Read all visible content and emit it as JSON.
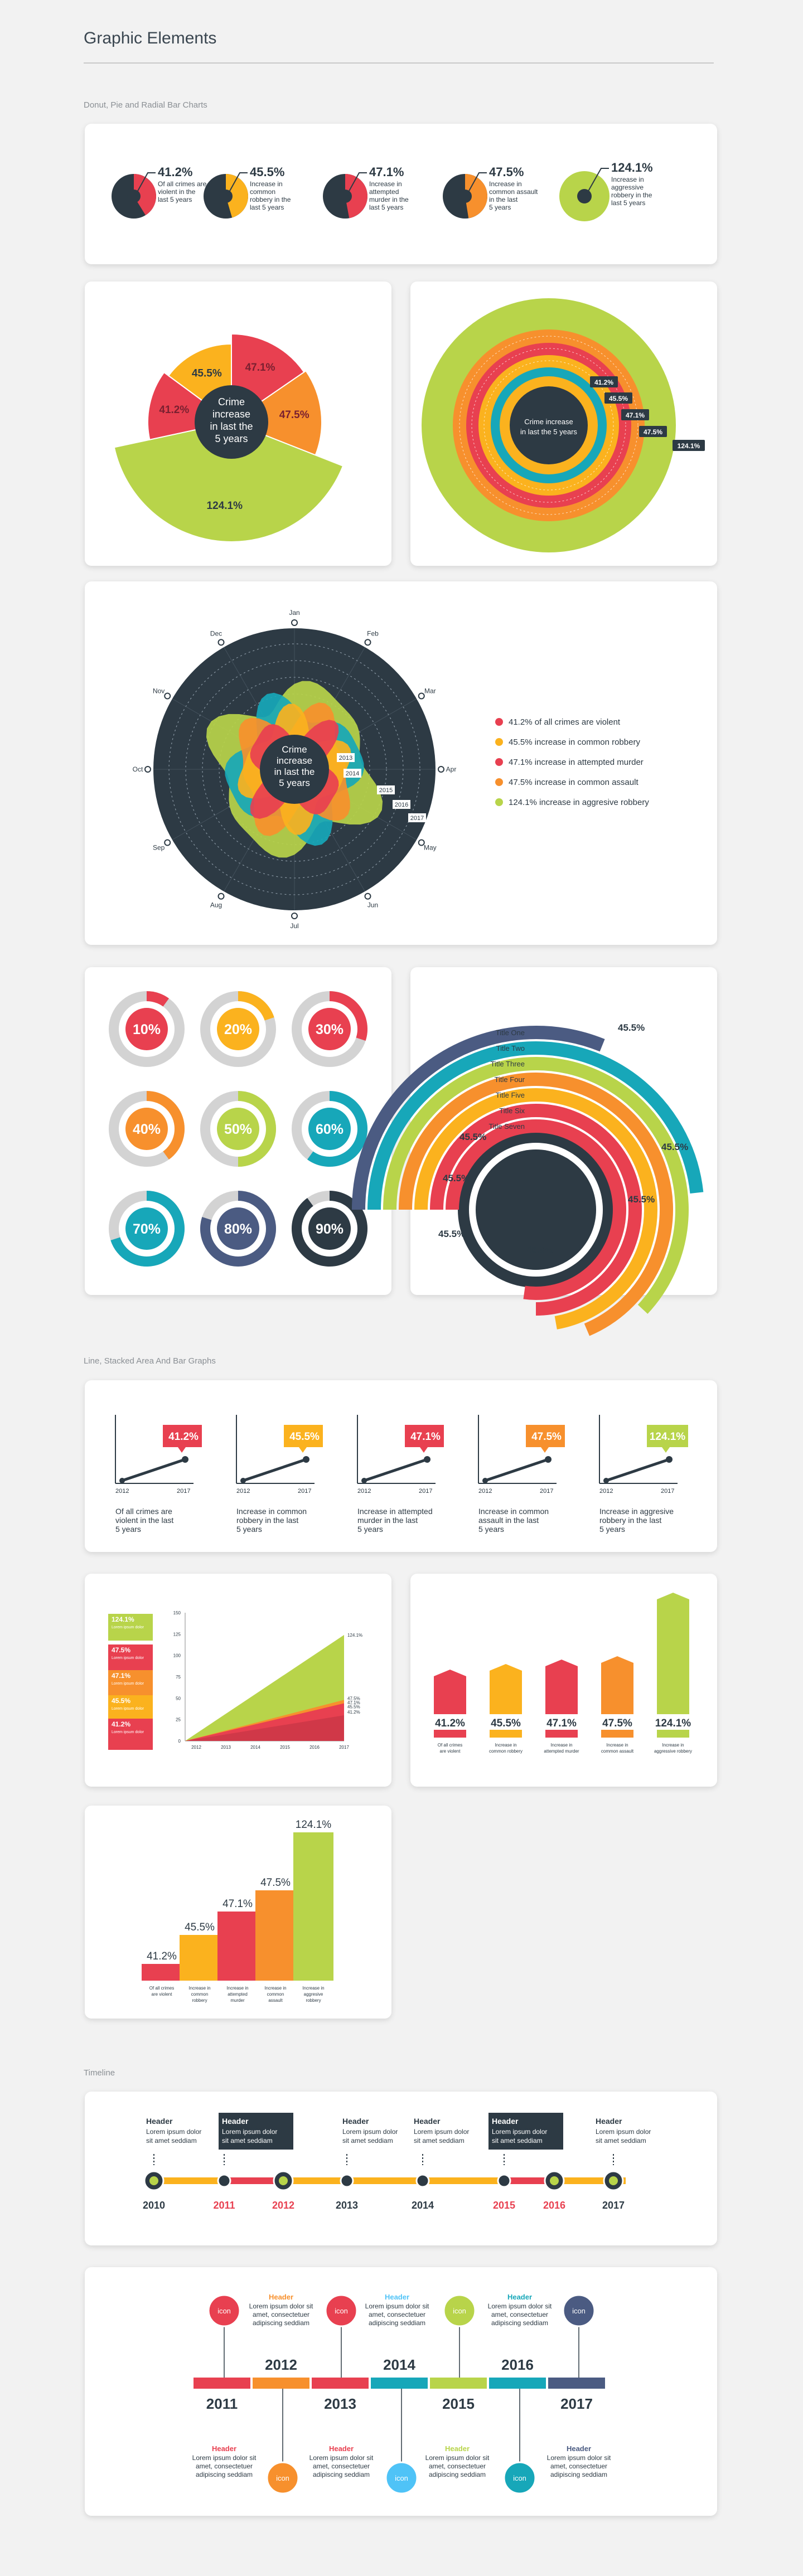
{
  "colors": {
    "red": "#e84050",
    "orange": "#f7902d",
    "yellow": "#fbb21e",
    "green": "#b8d44a",
    "teal": "#17a7b9",
    "blue": "#4b5b82",
    "dark": "#2d3a44",
    "grey": "#d3d3d3"
  },
  "page": {
    "title": "Graphic Elements"
  },
  "sections": {
    "s1": "Donut, Pie and Radial Bar Charts",
    "s2": "Line, Stacked Area And Bar Graphs",
    "s3": "Timeline"
  },
  "center_label": {
    "l1": "Crime",
    "l2": "increase",
    "l3": "in last the",
    "l4": "5 years",
    "single": "Crime increase in last the 5 years"
  },
  "chart_data": [
    {
      "type": "pie",
      "id": "mini-donuts",
      "values": [
        41.2,
        45.5,
        47.1,
        47.5,
        124.1
      ],
      "labels": [
        "41.2%",
        "45.5%",
        "47.1%",
        "47.5%",
        "124.1%"
      ],
      "captions": [
        [
          "Of all crimes are",
          "violent  in the",
          "last 5 years"
        ],
        [
          "Increase in",
          "common",
          "robbery in the",
          "last 5 years"
        ],
        [
          "Increase in",
          "attempted",
          "murder in the",
          "last 5 years"
        ],
        [
          "Increase in",
          "common assault",
          "in the last",
          "5 years"
        ],
        [
          "Increase in",
          "aggressive",
          "robbery in the",
          "last 5 years"
        ]
      ]
    },
    {
      "type": "pie",
      "id": "exploded-pie",
      "values": [
        47.1,
        47.5,
        124.1,
        41.2,
        45.5
      ],
      "labels": [
        "47.1%",
        "47.5%",
        "124.1%",
        "41.2%",
        "45.5%"
      ]
    },
    {
      "type": "pie",
      "id": "concentric",
      "values": [
        41.2,
        45.5,
        47.1,
        47.5,
        124.1
      ],
      "labels": [
        "41.2%",
        "45.5%",
        "47.1%",
        "47.5%",
        "124.1%"
      ]
    },
    {
      "type": "area",
      "id": "radial-wave",
      "months": [
        "Jan",
        "Feb",
        "Mar",
        "Apr",
        "May",
        "Jun",
        "Jul",
        "Aug",
        "Sep",
        "Oct",
        "Nov",
        "Dec"
      ],
      "years": [
        "2013",
        "2014",
        "2015",
        "2016",
        "2017"
      ],
      "legend": [
        "41.2% of all crimes are violent",
        "45.5% increase in common robbery",
        "47.1% increase in attempted murder",
        "47.5% increase in common assault",
        "124.1% increase in aggresive robbery"
      ]
    },
    {
      "type": "pie",
      "id": "percent-donuts",
      "values": [
        10,
        20,
        30,
        40,
        50,
        60,
        70,
        80,
        90
      ],
      "labels": [
        "10%",
        "20%",
        "30%",
        "40%",
        "50%",
        "60%",
        "70%",
        "80%",
        "90%"
      ]
    },
    {
      "type": "bar",
      "id": "radial-bars",
      "categories": [
        "Title One",
        "Title Two",
        "Title Three",
        "Title Four",
        "Title Five",
        "Title Six",
        "Title Seven"
      ],
      "values": [
        45.5,
        45.5,
        45.5,
        45.5,
        45.5,
        45.5,
        45.5
      ],
      "labels": [
        "45.5%",
        "45.5%",
        "45.5%",
        "45.5%",
        "45.5%",
        "45.5%",
        "45.5%"
      ]
    },
    {
      "type": "line",
      "id": "mini-lines",
      "x": [
        "2012",
        "2017"
      ],
      "values": [
        41.2,
        45.5,
        47.1,
        47.5,
        124.1
      ],
      "labels": [
        "41.2%",
        "45.5%",
        "47.1%",
        "47.5%",
        "124.1%"
      ],
      "captions": [
        [
          "Of all crimes are",
          "violent in the last",
          "5 years"
        ],
        [
          "Increase in common",
          "robbery in the last",
          "5 years"
        ],
        [
          "Increase in attempted",
          "murder in the last",
          "5 years"
        ],
        [
          "Increase in common",
          "assault in the last",
          "5 years"
        ],
        [
          "Increase in aggresive",
          "robbery in the last",
          "5 years"
        ]
      ]
    },
    {
      "type": "area",
      "id": "stacked-area",
      "x": [
        "2012",
        "2013",
        "2014",
        "2015",
        "2016",
        "2017"
      ],
      "ylim": [
        0,
        150
      ],
      "yticks": [
        "0",
        "25",
        "50",
        "75",
        "100",
        "125",
        "150"
      ],
      "end_labels": [
        "124.1%",
        "47.5%",
        "47.1%",
        "45.5%",
        "41.2%"
      ],
      "side_labels": [
        "124.1%",
        "47.5%",
        "47.1%",
        "45.5%",
        "41.2%"
      ]
    },
    {
      "type": "bar",
      "id": "column-bars",
      "values": [
        41.2,
        45.5,
        47.1,
        47.5,
        124.1
      ],
      "labels": [
        "41.2%",
        "45.5%",
        "47.1%",
        "47.5%",
        "124.1%"
      ],
      "captions": [
        [
          "Of all crimes",
          "are violent"
        ],
        [
          "Increase in",
          "common robbery"
        ],
        [
          "Increase in",
          "attempted murder"
        ],
        [
          "Increase in",
          "common assault"
        ],
        [
          "Increase in",
          "aggressive robbery"
        ]
      ]
    },
    {
      "type": "bar",
      "id": "step-bars",
      "values": [
        41.2,
        45.5,
        47.1,
        47.5,
        124.1
      ],
      "labels": [
        "41.2%",
        "45.5%",
        "47.1%",
        "47.5%",
        "124.1%"
      ],
      "captions": [
        [
          "Of all crimes",
          "are violent"
        ],
        [
          "Increase in",
          "common",
          "robbery"
        ],
        [
          "Increase in",
          "attempted",
          "murder"
        ],
        [
          "Increase in",
          "common",
          "assault"
        ],
        [
          "Increase in",
          "aggresive",
          "robbery"
        ]
      ]
    }
  ],
  "timeline1": {
    "years": [
      "2010",
      "2011",
      "2012",
      "2013",
      "2014",
      "2015",
      "2016",
      "2017"
    ],
    "items": [
      {
        "header": "Header",
        "l1": "Lorem ipsum dolor",
        "l2": "sit amet seddiam"
      },
      {
        "header": "Header",
        "l1": "Lorem ipsum dolor",
        "l2": "sit amet seddiam"
      },
      {
        "header": "Header",
        "l1": "Lorem ipsum dolor",
        "l2": "sit amet seddiam"
      },
      {
        "header": "Header",
        "l1": "Lorem ipsum dolor",
        "l2": "sit amet seddiam"
      },
      {
        "header": "Header",
        "l1": "Lorem ipsum dolor",
        "l2": "sit amet seddiam"
      },
      {
        "header": "Header",
        "l1": "Lorem ipsum dolor",
        "l2": "sit amet seddiam"
      }
    ]
  },
  "timeline2": {
    "years": [
      "2011",
      "2012",
      "2013",
      "2014",
      "2015",
      "2016",
      "2017"
    ],
    "icon": "icon",
    "header": "Header",
    "l1": "Lorem ipsum dolor sit",
    "l2": "amet, consectetuer",
    "l3": "adipiscing seddiam"
  }
}
